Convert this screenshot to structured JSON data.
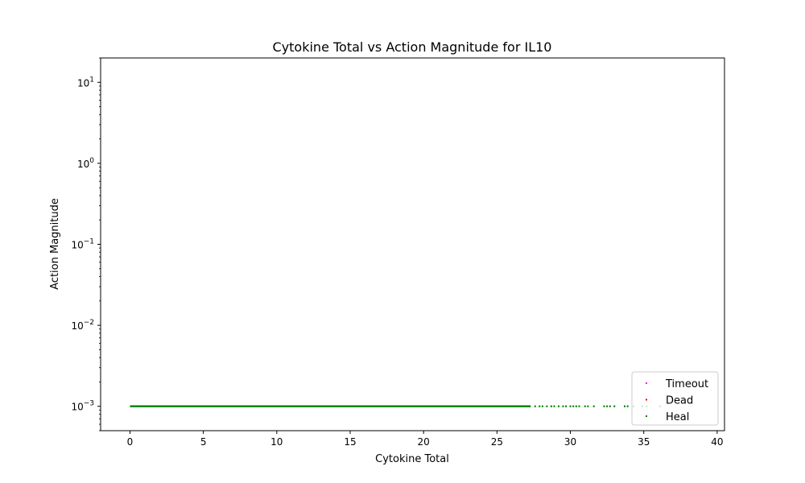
{
  "chart_data": {
    "type": "scatter",
    "title": "Cytokine Total vs Action Magnitude for IL10",
    "xlabel": "Cytokine Total",
    "ylabel": "Action Magnitude",
    "xlim": [
      -2,
      40.5
    ],
    "ylim": [
      0.0005,
      20
    ],
    "yscale": "log",
    "xticks": [
      0,
      5,
      10,
      15,
      20,
      25,
      30,
      35,
      40
    ],
    "yticks": [
      {
        "value": 0.001,
        "base": "10",
        "exp": "−3"
      },
      {
        "value": 0.01,
        "base": "10",
        "exp": "−2"
      },
      {
        "value": 0.1,
        "base": "10",
        "exp": "−1"
      },
      {
        "value": 1,
        "base": "10",
        "exp": "0"
      },
      {
        "value": 10,
        "base": "10",
        "exp": "1"
      }
    ],
    "grid": false,
    "legend_position": "lower-right",
    "series": [
      {
        "name": "Timeout",
        "color": "#ff00ff",
        "x": [],
        "y": []
      },
      {
        "name": "Dead",
        "color": "#ff0000",
        "x": [],
        "y": []
      },
      {
        "name": "Heal",
        "color": "#008000",
        "dense_range": {
          "x_start": 0,
          "x_end": 27.3,
          "y": 0.001
        },
        "x": [
          27.6,
          27.9,
          28.1,
          28.4,
          28.7,
          28.9,
          29.2,
          29.5,
          29.7,
          30.0,
          30.2,
          30.4,
          30.6,
          31.0,
          31.2,
          31.6,
          32.3,
          32.5,
          32.7,
          33.0,
          33.7,
          33.9,
          34.3,
          34.9,
          35.2,
          36.1
        ],
        "y": [
          0.001,
          0.001,
          0.001,
          0.001,
          0.001,
          0.001,
          0.001,
          0.001,
          0.001,
          0.001,
          0.001,
          0.001,
          0.001,
          0.001,
          0.001,
          0.001,
          0.001,
          0.001,
          0.001,
          0.001,
          0.001,
          0.001,
          0.001,
          0.001,
          0.001,
          0.001
        ]
      }
    ]
  }
}
